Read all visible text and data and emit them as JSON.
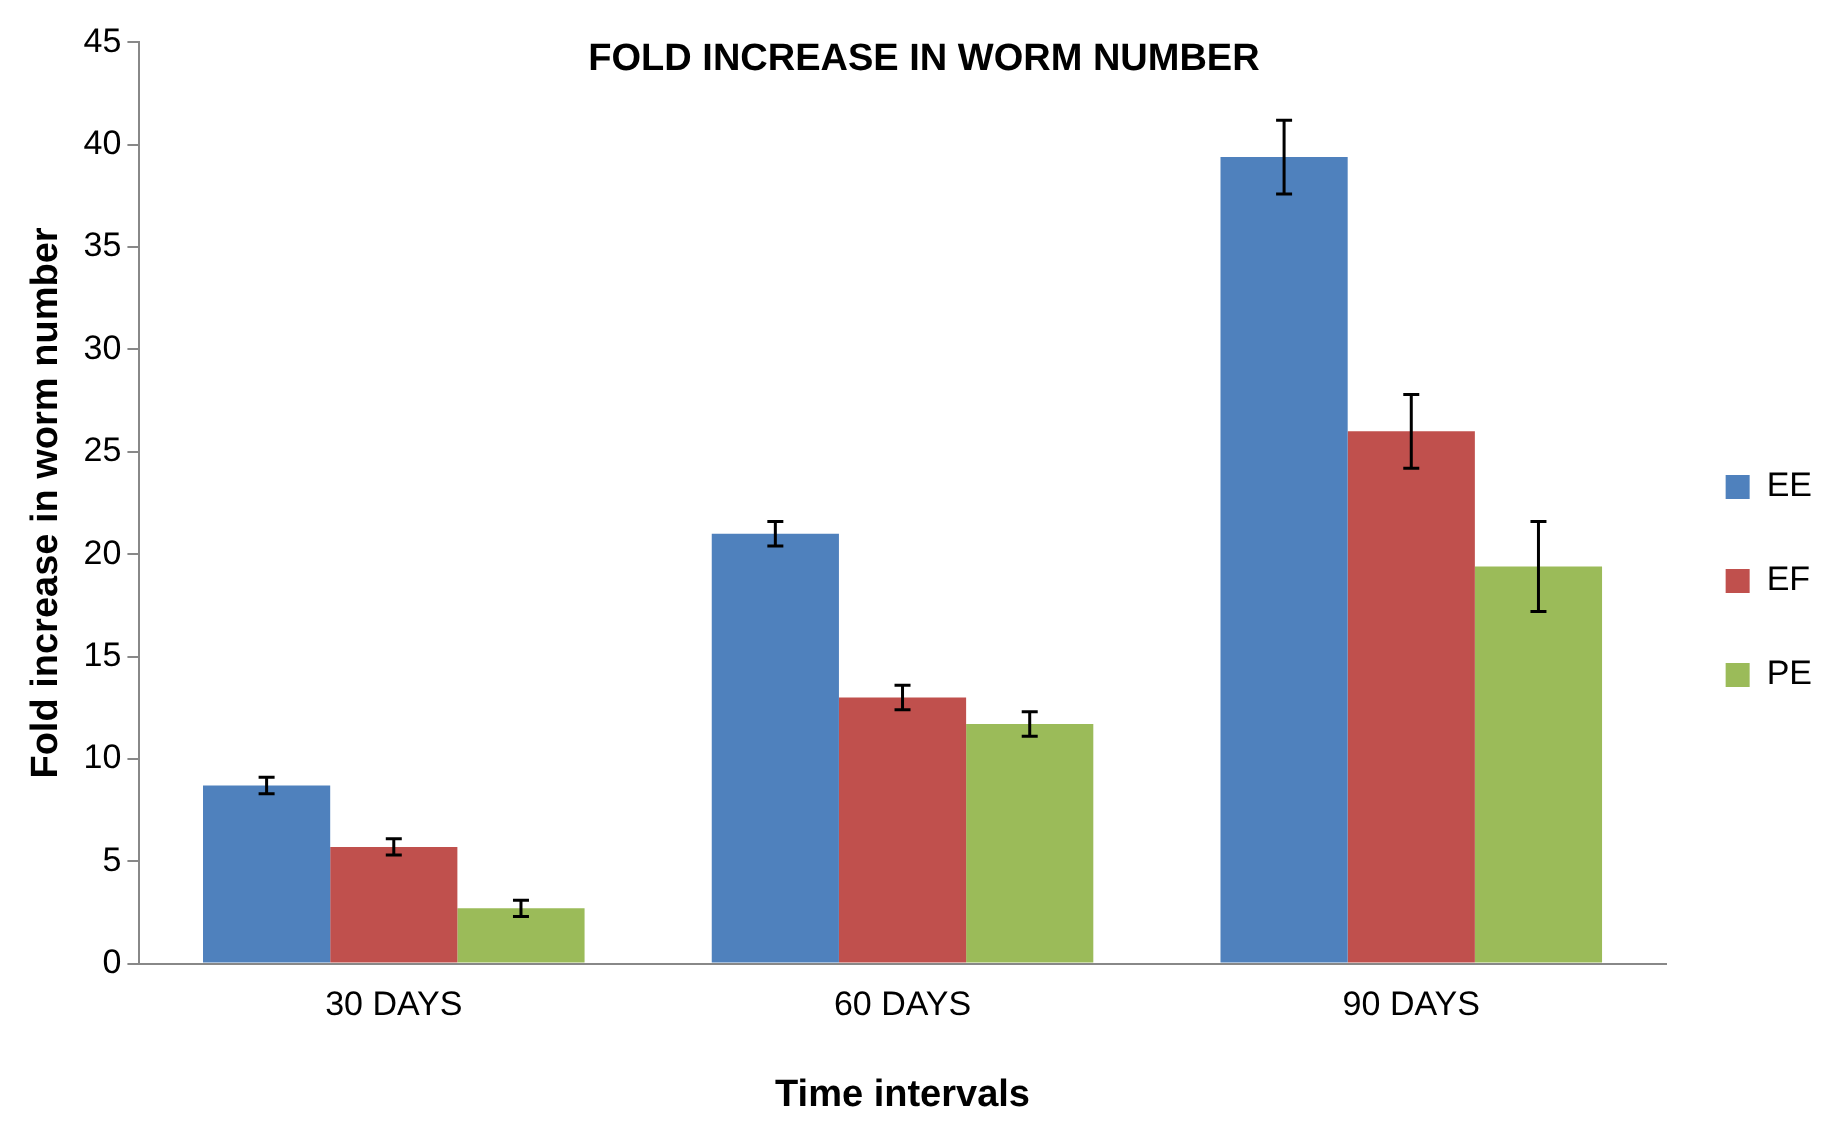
{
  "chart_data": {
    "type": "bar",
    "title": "FOLD INCREASE IN WORM NUMBER",
    "xlabel": "Time intervals",
    "ylabel": "Fold increase in worm number",
    "categories": [
      "30 DAYS",
      "60 DAYS",
      "90 DAYS"
    ],
    "series": [
      {
        "name": "EE",
        "color": "#4f81bd",
        "values": [
          8.7,
          21.0,
          39.4
        ],
        "errors": [
          0.4,
          0.6,
          1.8
        ]
      },
      {
        "name": "EF",
        "color": "#c0504d",
        "values": [
          5.7,
          13.0,
          26.0
        ],
        "errors": [
          0.4,
          0.6,
          1.8
        ]
      },
      {
        "name": "PE",
        "color": "#9bbb59",
        "values": [
          2.7,
          11.7,
          19.4
        ],
        "errors": [
          0.4,
          0.6,
          2.2
        ]
      }
    ],
    "ylim": [
      0,
      45
    ],
    "yticks": [
      0,
      5,
      10,
      15,
      20,
      25,
      30,
      35,
      40,
      45
    ],
    "grid": false,
    "legend": "right"
  }
}
